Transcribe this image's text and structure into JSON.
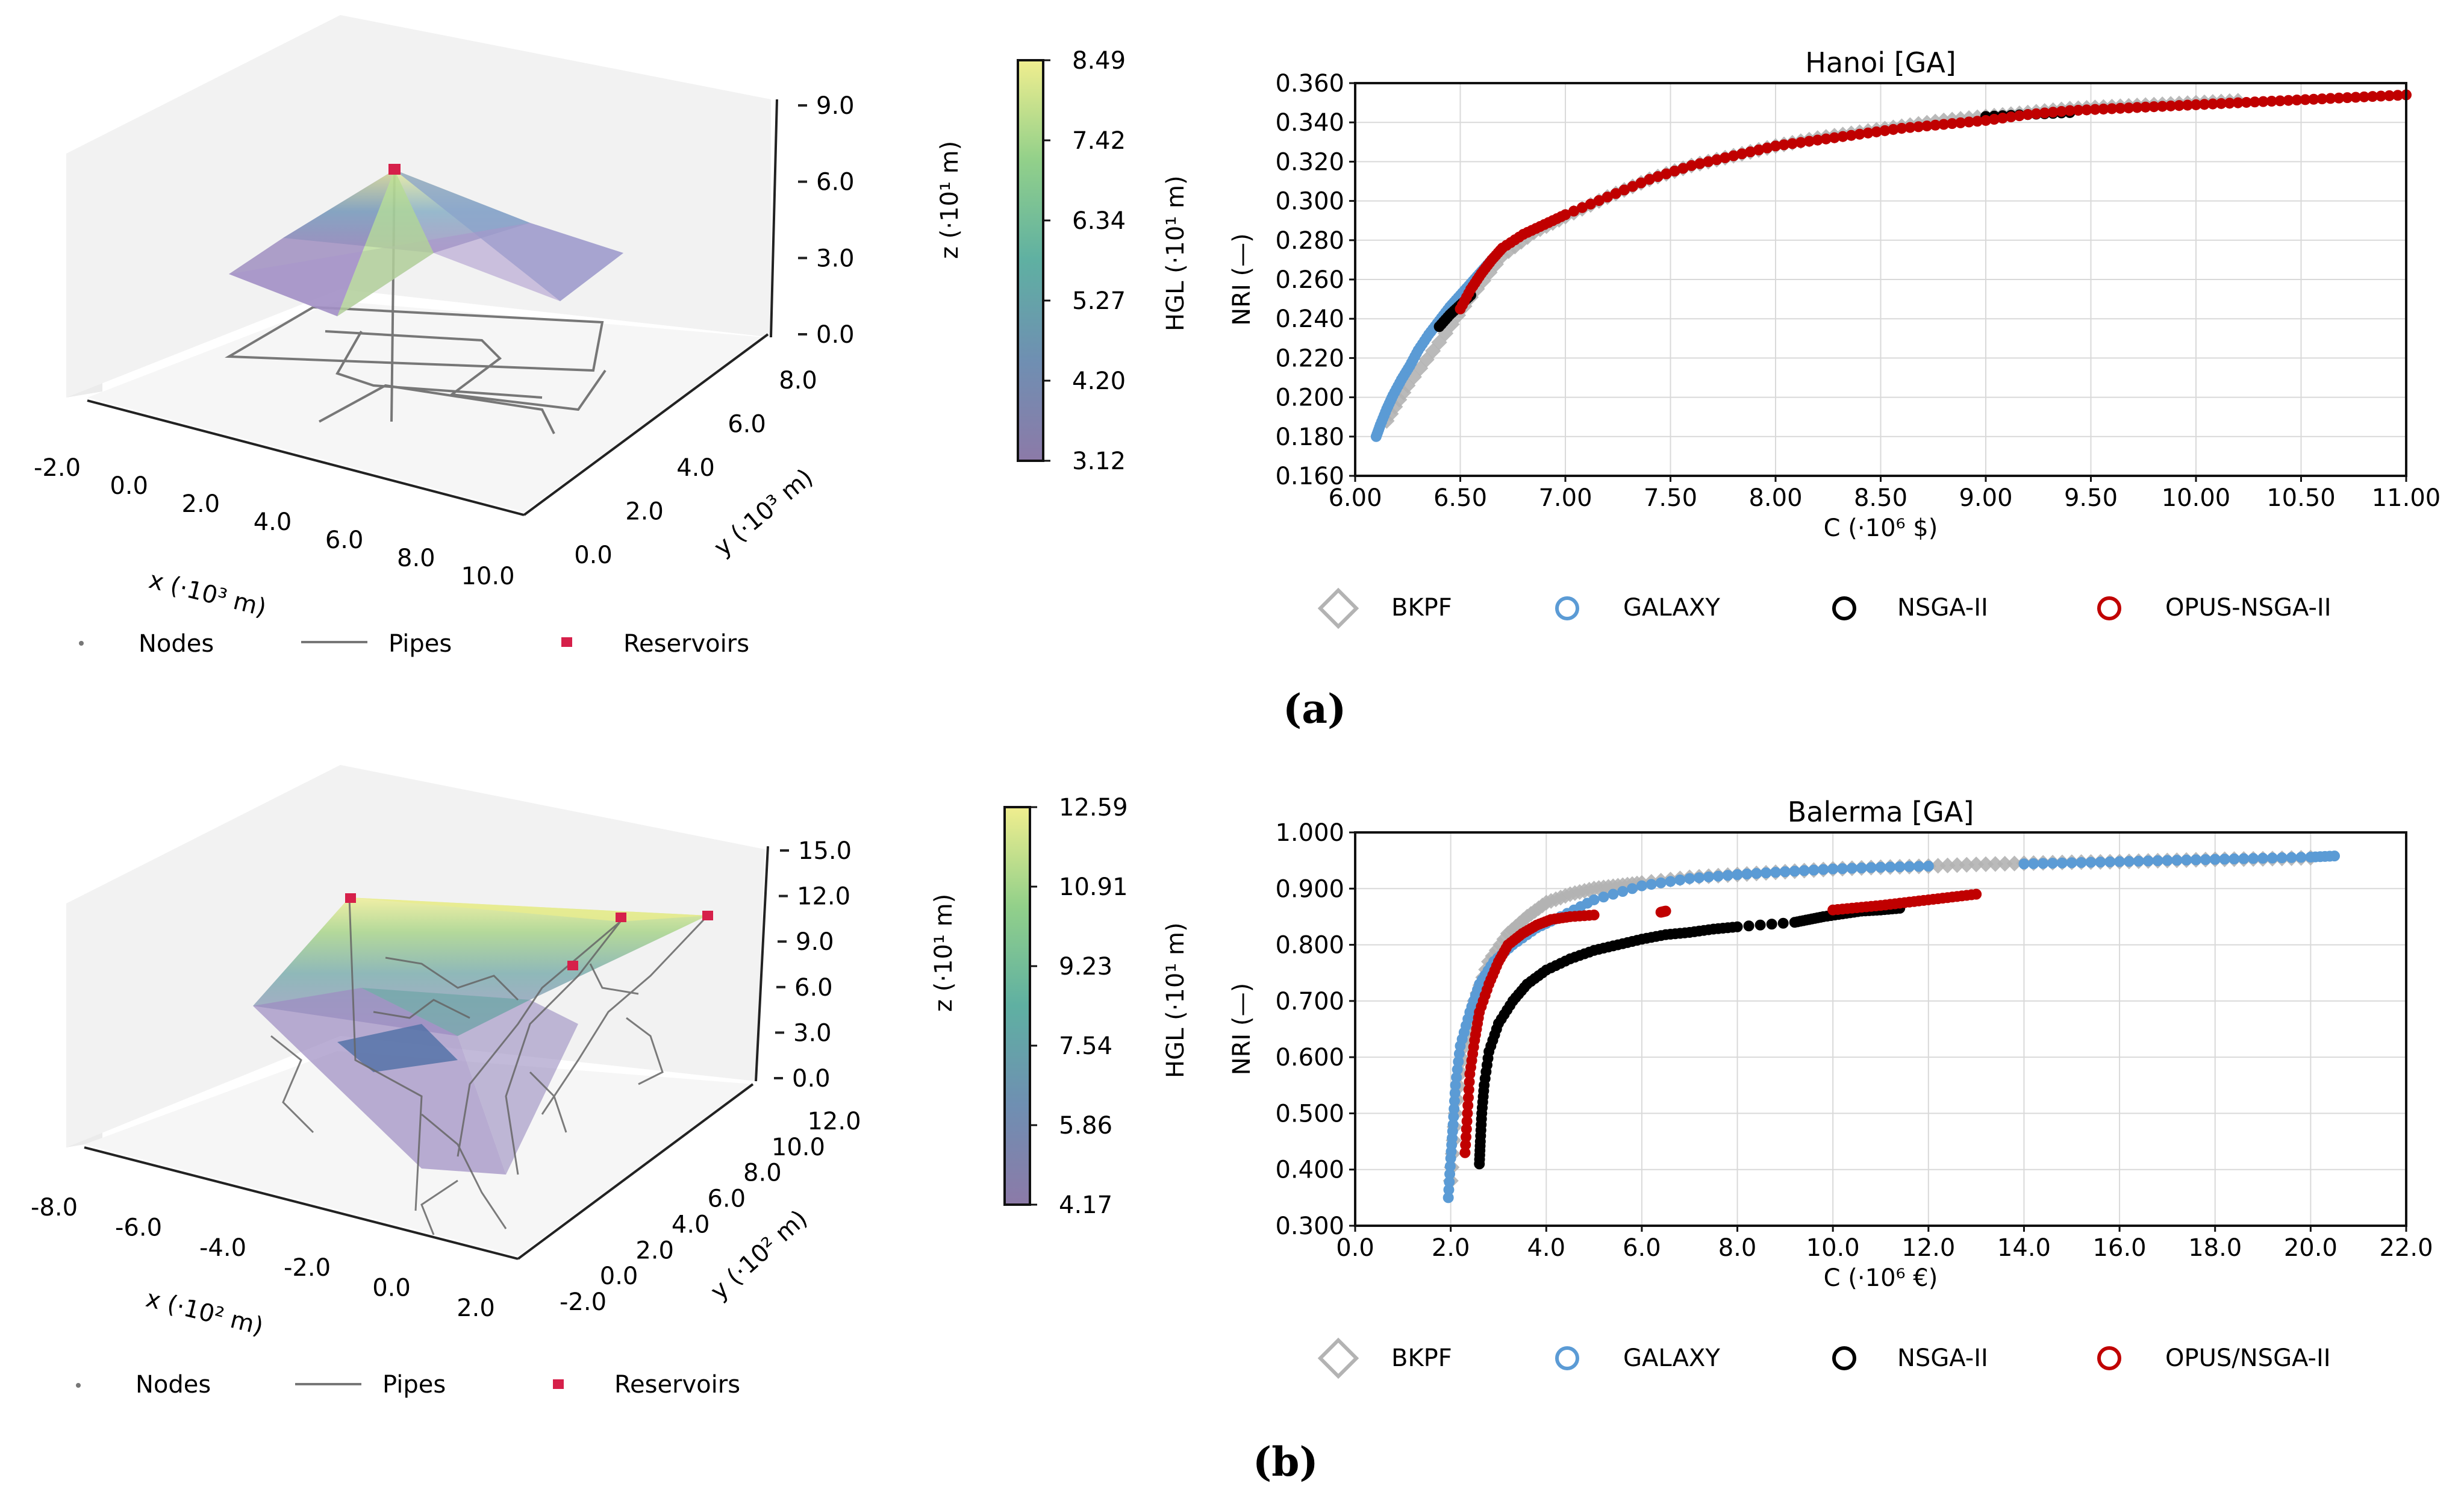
{
  "chart_data": [
    {
      "type": "surface3d",
      "panel": "a",
      "xlabel": "x (·10³ m)",
      "ylabel": "y (·10³ m)",
      "zlabel": "z (·10¹ m)",
      "x_ticks": [
        "-2.0",
        "0.0",
        "2.0",
        "4.0",
        "6.0",
        "8.0",
        "10.0"
      ],
      "y_ticks": [
        "0.0",
        "2.0",
        "4.0",
        "6.0",
        "8.0"
      ],
      "z_ticks": [
        "0.0",
        "3.0",
        "6.0",
        "9.0"
      ],
      "colorbar": {
        "label": "HGL (·10¹ m)",
        "ticks": [
          "8.49",
          "7.42",
          "6.34",
          "5.27",
          "4.20",
          "3.12"
        ],
        "range": [
          3.12,
          8.49
        ]
      },
      "legend": [
        "Nodes",
        "Pipes",
        "Reservoirs"
      ],
      "reservoir_count": 1
    },
    {
      "type": "scatter",
      "panel": "a",
      "title": "Hanoi [GA]",
      "xlabel": "C (·10⁶ $)",
      "ylabel": "NRI (—)",
      "xlim": [
        6.0,
        11.0
      ],
      "ylim": [
        0.16,
        0.36
      ],
      "x_ticks": [
        "6.00",
        "6.50",
        "7.00",
        "7.50",
        "8.00",
        "8.50",
        "9.00",
        "9.50",
        "10.00",
        "10.50",
        "11.00"
      ],
      "y_ticks": [
        "0.160",
        "0.180",
        "0.200",
        "0.220",
        "0.240",
        "0.260",
        "0.280",
        "0.300",
        "0.320",
        "0.340",
        "0.360"
      ],
      "grid": true,
      "legend_position": "bottom",
      "series": [
        {
          "name": "BKPF",
          "marker": "diamond",
          "color": "#b3b3b3",
          "x": [
            6.15,
            6.25,
            6.4,
            6.55,
            6.7,
            6.85,
            7.0,
            7.2,
            7.4,
            7.6,
            7.8,
            8.0,
            8.2,
            8.4,
            8.6,
            8.8,
            9.0,
            9.2,
            9.4,
            9.6,
            9.8,
            10.0,
            10.2
          ],
          "y": [
            0.188,
            0.206,
            0.228,
            0.251,
            0.272,
            0.284,
            0.292,
            0.302,
            0.311,
            0.318,
            0.323,
            0.328,
            0.332,
            0.335,
            0.338,
            0.341,
            0.343,
            0.345,
            0.347,
            0.348,
            0.349,
            0.35,
            0.351
          ]
        },
        {
          "name": "GALAXY",
          "marker": "circle",
          "color": "#5b9bd5",
          "x": [
            6.1,
            6.12,
            6.15,
            6.18,
            6.22,
            6.26,
            6.3,
            6.35,
            6.4,
            6.45,
            6.5,
            6.55,
            6.6,
            6.65
          ],
          "y": [
            0.18,
            0.186,
            0.194,
            0.201,
            0.209,
            0.216,
            0.224,
            0.232,
            0.239,
            0.246,
            0.252,
            0.258,
            0.264,
            0.27
          ]
        },
        {
          "name": "NSGA-II",
          "marker": "circle",
          "color": "#000000",
          "x": [
            6.4,
            6.45,
            6.5,
            6.55,
            9.0,
            9.2,
            9.4
          ],
          "y": [
            0.236,
            0.242,
            0.247,
            0.252,
            0.343,
            0.344,
            0.345
          ]
        },
        {
          "name": "OPUS-NSGA-II",
          "marker": "circle",
          "color": "#c00000",
          "x": [
            6.5,
            6.55,
            6.6,
            6.65,
            6.7,
            6.8,
            6.9,
            7.0,
            7.2,
            7.4,
            7.6,
            7.8,
            8.0,
            8.2,
            8.4,
            8.6,
            8.8,
            9.0,
            9.2,
            9.4,
            9.6,
            9.8,
            10.0,
            10.2,
            10.4,
            10.6,
            10.8,
            11.0
          ],
          "y": [
            0.245,
            0.255,
            0.263,
            0.27,
            0.276,
            0.283,
            0.288,
            0.293,
            0.302,
            0.311,
            0.318,
            0.323,
            0.328,
            0.331,
            0.334,
            0.337,
            0.339,
            0.341,
            0.344,
            0.346,
            0.347,
            0.348,
            0.349,
            0.35,
            0.351,
            0.352,
            0.353,
            0.354
          ]
        }
      ]
    },
    {
      "type": "surface3d",
      "panel": "b",
      "xlabel": "x (·10² m)",
      "ylabel": "y (·10² m)",
      "zlabel": "z (·10¹ m)",
      "x_ticks": [
        "-8.0",
        "-6.0",
        "-4.0",
        "-2.0",
        "0.0",
        "2.0"
      ],
      "y_ticks": [
        "-2.0",
        "0.0",
        "2.0",
        "4.0",
        "6.0",
        "8.0",
        "10.0",
        "12.0"
      ],
      "z_ticks": [
        "0.0",
        "3.0",
        "6.0",
        "9.0",
        "12.0",
        "15.0"
      ],
      "colorbar": {
        "label": "HGL (·10¹ m)",
        "ticks": [
          "12.59",
          "10.91",
          "9.23",
          "7.54",
          "5.86",
          "4.17"
        ],
        "range": [
          4.17,
          12.59
        ]
      },
      "legend": [
        "Nodes",
        "Pipes",
        "Reservoirs"
      ],
      "reservoir_count": 4
    },
    {
      "type": "scatter",
      "panel": "b",
      "title": "Balerma [GA]",
      "xlabel": "C (·10⁶ €)",
      "ylabel": "NRI (—)",
      "xlim": [
        0.0,
        22.0
      ],
      "ylim": [
        0.3,
        1.0
      ],
      "x_ticks": [
        "0.0",
        "2.0",
        "4.0",
        "6.0",
        "8.0",
        "10.0",
        "12.0",
        "14.0",
        "16.0",
        "18.0",
        "20.0",
        "22.0"
      ],
      "y_ticks": [
        "0.300",
        "0.400",
        "0.500",
        "0.600",
        "0.700",
        "0.800",
        "0.900",
        "1.000"
      ],
      "grid": true,
      "legend_position": "bottom",
      "series": [
        {
          "name": "BKPF",
          "marker": "diamond",
          "color": "#b3b3b3",
          "x": [
            2.0,
            2.1,
            2.3,
            2.5,
            2.8,
            3.2,
            3.6,
            4.0,
            4.5,
            5.0,
            5.5,
            6.0,
            7.0,
            8.0,
            9.0,
            10.0,
            11.0,
            12.0,
            13.0,
            14.0,
            15.0,
            16.0,
            17.0,
            18.0,
            19.0,
            20.0
          ],
          "y": [
            0.38,
            0.5,
            0.62,
            0.7,
            0.77,
            0.82,
            0.85,
            0.875,
            0.89,
            0.9,
            0.905,
            0.91,
            0.92,
            0.925,
            0.93,
            0.935,
            0.938,
            0.94,
            0.943,
            0.945,
            0.947,
            0.948,
            0.95,
            0.952,
            0.953,
            0.955
          ]
        },
        {
          "name": "GALAXY",
          "marker": "circle",
          "color": "#5b9bd5",
          "x": [
            1.95,
            2.0,
            2.05,
            2.1,
            2.2,
            2.4,
            2.6,
            2.9,
            3.3,
            3.8,
            4.3,
            5.0,
            6.0,
            7.0,
            8.0,
            9.0,
            10.0,
            11.0,
            12.0,
            14.0,
            15.0,
            16.0,
            17.0,
            18.0,
            19.0,
            20.0,
            20.5
          ],
          "y": [
            0.35,
            0.42,
            0.48,
            0.55,
            0.62,
            0.68,
            0.73,
            0.77,
            0.8,
            0.83,
            0.85,
            0.88,
            0.905,
            0.918,
            0.925,
            0.93,
            0.935,
            0.938,
            0.94,
            0.944,
            0.946,
            0.948,
            0.95,
            0.952,
            0.954,
            0.956,
            0.958
          ]
        },
        {
          "name": "NSGA-II",
          "marker": "circle",
          "color": "#000000",
          "x": [
            2.6,
            2.62,
            2.65,
            2.7,
            2.8,
            3.0,
            3.3,
            3.6,
            4.0,
            4.5,
            5.0,
            5.5,
            6.0,
            6.5,
            7.0,
            7.5,
            8.0,
            9.2,
            9.5,
            9.8,
            10.2,
            10.6,
            11.0,
            11.4
          ],
          "y": [
            0.41,
            0.45,
            0.5,
            0.55,
            0.61,
            0.66,
            0.7,
            0.73,
            0.755,
            0.775,
            0.79,
            0.8,
            0.81,
            0.818,
            0.822,
            0.828,
            0.832,
            0.84,
            0.845,
            0.85,
            0.855,
            0.86,
            0.862,
            0.865
          ]
        },
        {
          "name": "OPUS/NSGA-II",
          "marker": "circle",
          "color": "#c00000",
          "x": [
            2.3,
            2.35,
            2.4,
            2.5,
            2.6,
            2.8,
            3.0,
            3.2,
            3.5,
            3.8,
            4.1,
            4.5,
            5.0,
            6.4,
            6.5,
            10.0,
            10.5,
            11.0,
            11.5,
            12.0,
            12.5,
            13.0
          ],
          "y": [
            0.43,
            0.5,
            0.57,
            0.63,
            0.68,
            0.73,
            0.77,
            0.8,
            0.82,
            0.835,
            0.845,
            0.85,
            0.853,
            0.858,
            0.86,
            0.862,
            0.866,
            0.87,
            0.875,
            0.88,
            0.885,
            0.89
          ]
        }
      ]
    }
  ],
  "panels": {
    "a": "(a)",
    "b": "(b)"
  }
}
